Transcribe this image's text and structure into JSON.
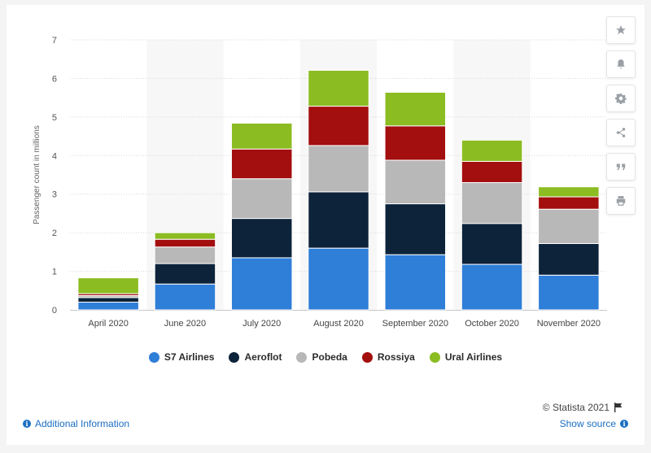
{
  "chart_data": {
    "type": "bar",
    "stacked": true,
    "categories": [
      "April 2020",
      "June 2020",
      "July 2020",
      "August 2020",
      "September 2020",
      "October 2020",
      "November 2020"
    ],
    "series": [
      {
        "name": "S7 Airlines",
        "color": "#2f7ed8",
        "values": [
          0.2,
          0.67,
          1.35,
          1.6,
          1.43,
          1.18,
          0.9
        ]
      },
      {
        "name": "Aeroflot",
        "color": "#0d233a",
        "values": [
          0.12,
          0.53,
          1.02,
          1.46,
          1.32,
          1.06,
          0.82
        ]
      },
      {
        "name": "Pobeda",
        "color": "#b8b8b8",
        "values": [
          0.05,
          0.43,
          1.03,
          1.2,
          1.13,
          1.06,
          0.89
        ]
      },
      {
        "name": "Rossiya",
        "color": "#a30e0e",
        "values": [
          0.05,
          0.2,
          0.77,
          1.02,
          0.89,
          0.55,
          0.32
        ]
      },
      {
        "name": "Ural Airlines",
        "color": "#8bbc21",
        "values": [
          0.41,
          0.17,
          0.67,
          0.93,
          0.87,
          0.55,
          0.26
        ]
      }
    ],
    "ylabel": "Passenger count in millions",
    "xlabel": "",
    "ylim": [
      0,
      7
    ],
    "yticks": [
      0,
      1,
      2,
      3,
      4,
      5,
      6,
      7
    ],
    "grid": true,
    "legend_position": "bottom"
  },
  "toolbar": {
    "icons": [
      "star-icon",
      "bell-icon",
      "gear-icon",
      "share-icon",
      "quote-icon",
      "print-icon"
    ]
  },
  "footer": {
    "credit": "© Statista 2021",
    "additional_info": "Additional Information",
    "show_source": "Show source"
  }
}
